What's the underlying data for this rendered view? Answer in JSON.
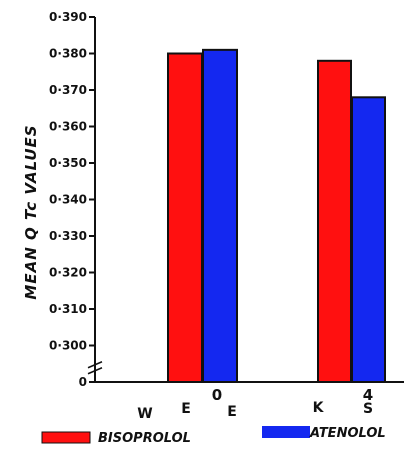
{
  "chart_data": {
    "type": "bar",
    "title": "",
    "ylabel": "MEAN  Q Tc  VALUES",
    "xlabel": "W E E K S",
    "categories": [
      "0",
      "4"
    ],
    "series": [
      {
        "name": "BISOPROLOL",
        "color": "#ff1010",
        "values": [
          0.38,
          0.378
        ]
      },
      {
        "name": "ATENOLOL",
        "color": "#1428f0",
        "values": [
          0.381,
          0.368
        ]
      }
    ],
    "ylim": [
      0.29,
      0.39
    ],
    "ytick_labels": [
      "0",
      "0·300",
      "0·310",
      "0·320",
      "0·330",
      "0·340",
      "0·350",
      "0·360",
      "0·370",
      "0·380",
      "0·390"
    ],
    "ytick_values": [
      0.29,
      0.3,
      0.31,
      0.32,
      0.33,
      0.34,
      0.35,
      0.36,
      0.37,
      0.38,
      0.39
    ],
    "axis_break": true,
    "grid": false,
    "legend_position": "bottom"
  }
}
